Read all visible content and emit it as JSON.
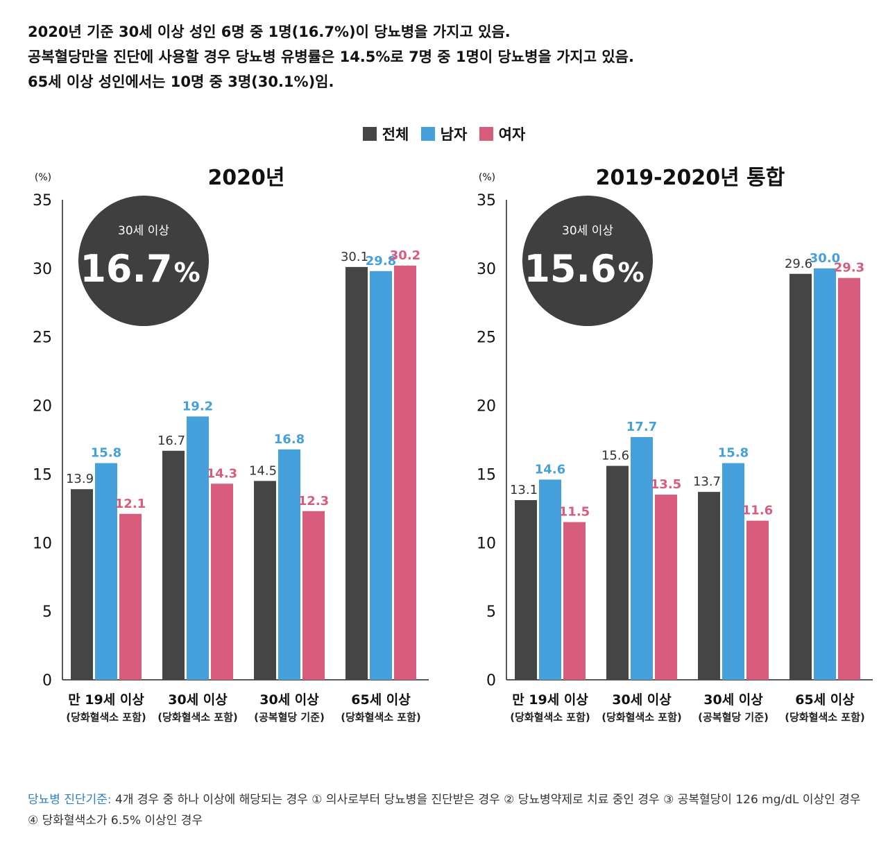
{
  "summary": [
    "2020년 기준 30세 이상 성인 6명 중 1명(16.7%)이 당뇨병을 가지고 있음.",
    "공복혈당만을 진단에 사용할 경우 당뇨병 유병률은 14.5%로 7명 중 1명이 당뇨병을 가지고 있음.",
    "65세 이상 성인에서는 10명 중 3명(30.1%)임."
  ],
  "legend": [
    {
      "label": "전체",
      "color": "#454545"
    },
    {
      "label": "남자",
      "color": "#45a0dc"
    },
    {
      "label": "여자",
      "color": "#d85c7c"
    }
  ],
  "chart_data": [
    {
      "type": "bar",
      "title": "2020년",
      "ylabel": "(%)",
      "ylim": [
        0,
        35
      ],
      "yticks": [
        "35",
        "30",
        "25",
        "20",
        "15",
        "10",
        "5",
        "0"
      ],
      "categories": [
        "만 19세 이상",
        "30세 이상",
        "30세 이상",
        "65세 이상"
      ],
      "sublabels": [
        "(당화혈색소 포함)",
        "(당화혈색소 포함)",
        "(공복혈당 기준)",
        "(당화혈색소 포함)"
      ],
      "series": [
        {
          "name": "전체",
          "values": [
            13.9,
            16.7,
            14.5,
            30.1
          ],
          "labels": [
            "13.9",
            "16.7",
            "14.5",
            "30.1"
          ]
        },
        {
          "name": "남자",
          "values": [
            15.8,
            19.2,
            16.8,
            29.8
          ],
          "labels": [
            "15.8",
            "19.2",
            "16.8",
            "29.8"
          ]
        },
        {
          "name": "여자",
          "values": [
            12.1,
            14.3,
            12.3,
            30.2
          ],
          "labels": [
            "12.1",
            "14.3",
            "12.3",
            "30.2"
          ]
        }
      ],
      "badge": {
        "label": "30세 이상",
        "value": "16.7",
        "unit": "%"
      }
    },
    {
      "type": "bar",
      "title": "2019-2020년 통합",
      "ylabel": "(%)",
      "ylim": [
        0,
        35
      ],
      "yticks": [
        "35",
        "30",
        "25",
        "20",
        "15",
        "10",
        "5",
        "0"
      ],
      "categories": [
        "만 19세 이상",
        "30세 이상",
        "30세 이상",
        "65세 이상"
      ],
      "sublabels": [
        "(당화혈색소 포함)",
        "(당화혈색소 포함)",
        "(공복혈당 기준)",
        "(당화혈색소 포함)"
      ],
      "series": [
        {
          "name": "전체",
          "values": [
            13.1,
            15.6,
            13.7,
            29.6
          ],
          "labels": [
            "13.1",
            "15.6",
            "13.7",
            "29.6"
          ]
        },
        {
          "name": "남자",
          "values": [
            14.6,
            17.7,
            15.8,
            30.0
          ],
          "labels": [
            "14.6",
            "17.7",
            "15.8",
            "30.0"
          ]
        },
        {
          "name": "여자",
          "values": [
            11.5,
            13.5,
            11.6,
            29.3
          ],
          "labels": [
            "11.5",
            "13.5",
            "11.6",
            "29.3"
          ]
        }
      ],
      "badge": {
        "label": "30세 이상",
        "value": "15.6",
        "unit": "%"
      }
    }
  ],
  "footnote": {
    "label": "당뇨병 진단기준:",
    "text": " 4개 경우 중 하나 이상에 해당되는 경우 ① 의사로부터 당뇨병을 진단받은 경우 ② 당뇨병약제로 치료 중인 경우 ③ 공복혈당이 126 mg/dL 이상인 경우 ④ 당화혈색소가 6.5% 이상인 경우"
  }
}
